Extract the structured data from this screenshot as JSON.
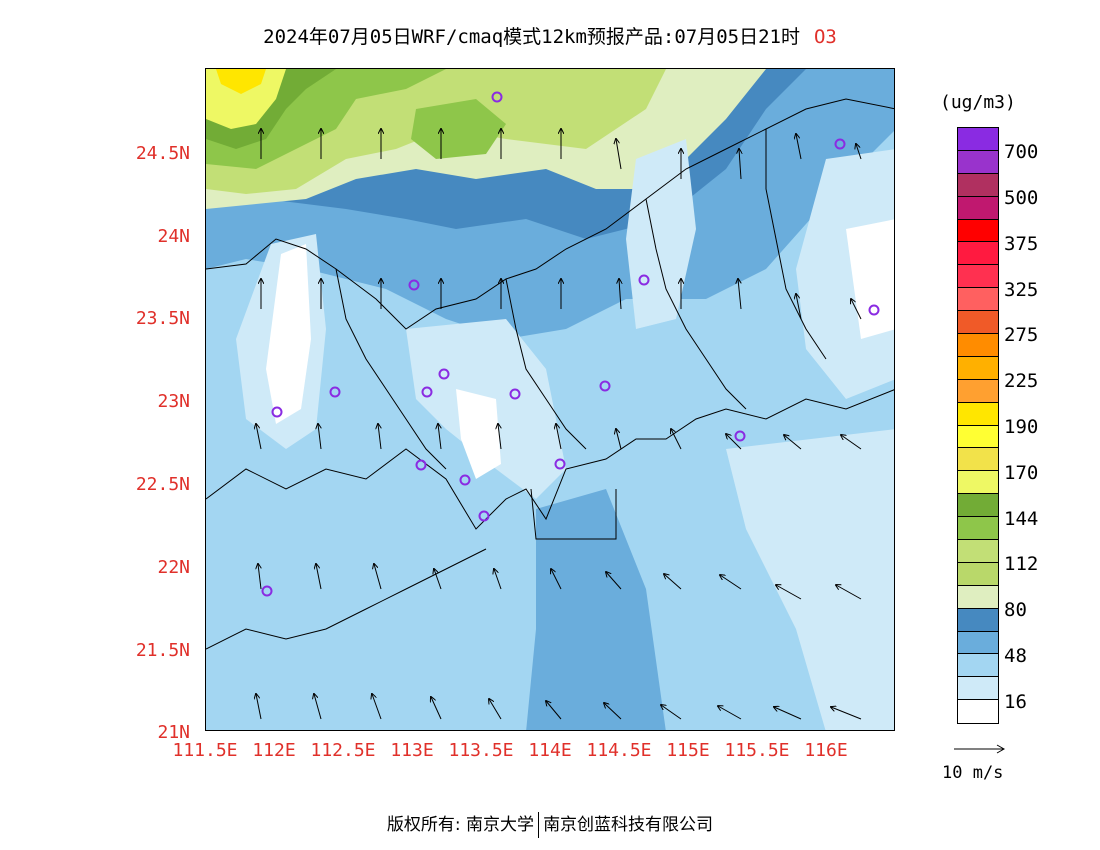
{
  "title": {
    "main": "2024年07月05日WRF/cmaq模式12km预报产品:07月05日21时",
    "species": "O3"
  },
  "map": {
    "lat_labels": [
      "24.5N",
      "24N",
      "23.5N",
      "23N",
      "22.5N",
      "22N",
      "21.5N",
      "21N"
    ],
    "lon_labels": [
      "111.5E",
      "112E",
      "112.5E",
      "113E",
      "113.5E",
      "114E",
      "114.5E",
      "115E",
      "115.5E",
      "116E"
    ],
    "lon_range": [
      111.5,
      116.5
    ],
    "lat_range": [
      21.0,
      25.0
    ],
    "station_marker_color": "#8a2be2"
  },
  "colorbar": {
    "unit": "(ug/m3)",
    "colors": [
      "#8a2be2",
      "#9933cc",
      "#b03060",
      "#c0186f",
      "#ff0000",
      "#ff1a40",
      "#ff3050",
      "#ff6060",
      "#f05a28",
      "#ff8c00",
      "#ffb000",
      "#ffa030",
      "#ffe600",
      "#ffff33",
      "#f2e24a",
      "#eef864",
      "#72ac36",
      "#8ec64a",
      "#c2df76",
      "#b9d86a",
      "#dfeec0",
      "#4689c0",
      "#6aaddc",
      "#a3d6f2",
      "#cfeaf8",
      "#ffffff"
    ],
    "labels": [
      "700",
      "500",
      "375",
      "325",
      "275",
      "225",
      "190",
      "170",
      "144",
      "112",
      "80",
      "48",
      "16"
    ]
  },
  "vector_reference": {
    "label": "10 m/s"
  },
  "footer": {
    "left": "版权所有: 南京大学",
    "right": "南京创蓝科技有限公司"
  }
}
